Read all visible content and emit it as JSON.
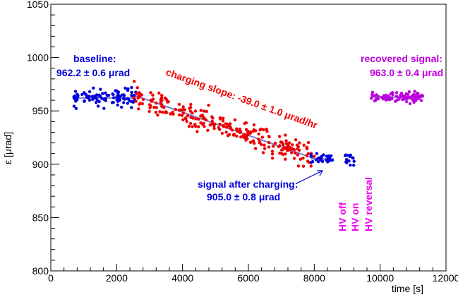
{
  "chart_data": {
    "type": "scatter",
    "xlabel": "time [s]",
    "ylabel": "ε [μrad]",
    "xlim": [
      0,
      12000
    ],
    "ylim": [
      800,
      1050
    ],
    "x_ticks": [
      "0",
      "2000",
      "4000",
      "6000",
      "8000",
      "10000",
      "12000"
    ],
    "y_ticks": [
      "800",
      "850",
      "900",
      "950",
      "1000",
      "1050"
    ],
    "colors": {
      "baseline": "#0000dd",
      "charging": "#ee0000",
      "recovered": "#bb00dd",
      "hv": "#ee00ee",
      "fit": "#7a7ad0"
    },
    "series": [
      {
        "key": "baseline",
        "x_range": [
          700,
          2600
        ],
        "mean": 962.2,
        "spread": 6,
        "count": 95
      },
      {
        "key": "charging",
        "x_range": [
          2500,
          8000
        ],
        "start": 965,
        "slope_per_s": -0.01083,
        "spread": 9,
        "count": 260
      },
      {
        "key": "after_charging",
        "x_range": [
          7900,
          8600
        ],
        "mean": 905.0,
        "spread": 4,
        "count": 30
      },
      {
        "key": "hv_off_on",
        "x_range": [
          8900,
          9300
        ],
        "mean": 905.0,
        "spread": 4,
        "count": 15
      },
      {
        "key": "recovered",
        "x_range": [
          9700,
          11300
        ],
        "mean": 963.0,
        "spread": 4,
        "count": 90
      }
    ],
    "fits": [
      {
        "key": "baseline",
        "x": [
          700,
          2600
        ],
        "y": [
          962.2,
          962.2
        ]
      },
      {
        "key": "charging",
        "x": [
          2500,
          8000
        ],
        "y": [
          965.0,
          905.4
        ]
      },
      {
        "key": "after_charging",
        "x": [
          7900,
          8600
        ],
        "y": [
          905.0,
          905.0
        ]
      },
      {
        "key": "recovered",
        "x": [
          9700,
          11300
        ],
        "y": [
          963.0,
          963.0
        ]
      }
    ],
    "annotations": {
      "baseline_title": "baseline:",
      "baseline_value": "962.2 ± 0.6 μrad",
      "charging_slope": "charging slope: -39.0 ± 1.0 μrad/hr",
      "after_title": "signal after charging:",
      "after_value": "905.0 ± 0.8 μrad",
      "recovered_title": "recovered signal:",
      "recovered_value": "963.0 ± 0.4 μrad",
      "hv_off": "HV off",
      "hv_on": "HV on",
      "hv_reversal": "HV reversal"
    }
  }
}
